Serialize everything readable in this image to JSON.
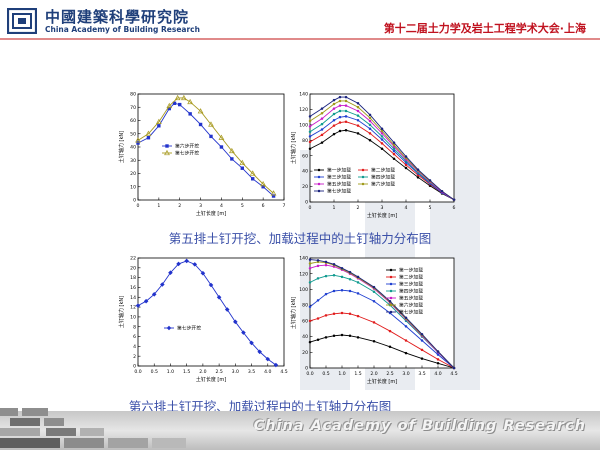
{
  "header": {
    "logo_cn": "中國建築科學研究院",
    "logo_en": "China Academy of Building Research",
    "conference": "第十二届土力学及岩土工程学术大会·上海"
  },
  "captions": {
    "row5": "第五排土钉开挖、加载过程中的土钉轴力分布图",
    "row6": "第六排土钉开挖、加载过程中的土钉轴力分布图"
  },
  "footer": {
    "text": "China Academy of Building Research"
  },
  "colors": {
    "accent": "#c0121f",
    "caption": "#3a4fa8",
    "logo": "#1f3f7a"
  },
  "chart_data": [
    {
      "type": "line",
      "xlabel": "土钉长度 [m]",
      "ylabel": "土钉轴力 [kN]",
      "xlim": [
        0,
        7
      ],
      "ylim": [
        0,
        80
      ],
      "xticks": [
        "0",
        "1",
        "2",
        "3",
        "4",
        "5",
        "6",
        "7"
      ],
      "yticks": [
        "0",
        "10",
        "20",
        "30",
        "40",
        "50",
        "60",
        "70",
        "80"
      ],
      "legend": "center-left",
      "series": [
        {
          "name": "第六步开挖",
          "color": "#2233cc",
          "marker": "square",
          "x": [
            0,
            0.5,
            1.0,
            1.5,
            1.75,
            2.0,
            2.5,
            3.0,
            3.5,
            4.0,
            4.5,
            5.0,
            5.5,
            6.0,
            6.5
          ],
          "y": [
            43,
            47,
            56,
            69,
            73,
            72,
            65,
            57,
            48,
            40,
            31,
            24,
            16,
            10,
            3
          ]
        },
        {
          "name": "第七步开挖",
          "color": "#a89a20",
          "marker": "triangle",
          "x": [
            0,
            0.5,
            1.0,
            1.5,
            1.9,
            2.2,
            2.5,
            3.0,
            3.5,
            4.0,
            4.5,
            5.0,
            5.5,
            6.0,
            6.5
          ],
          "y": [
            45,
            50,
            59,
            71,
            77,
            77,
            74,
            67,
            57,
            47,
            37,
            28,
            20,
            12,
            5
          ]
        }
      ]
    },
    {
      "type": "line",
      "xlabel": "土钉长度 [m]",
      "ylabel": "土钉轴力 [kN]",
      "xlim": [
        0,
        6
      ],
      "ylim": [
        0,
        140
      ],
      "xticks": [
        "0",
        "1",
        "2",
        "3",
        "4",
        "5",
        "6"
      ],
      "yticks": [
        "0",
        "20",
        "40",
        "60",
        "80",
        "100",
        "120",
        "140"
      ],
      "legend": "bottom-left",
      "series": [
        {
          "name": "第一步加载",
          "color": "#000000",
          "x": [
            0,
            0.5,
            1.0,
            1.25,
            1.5,
            2.0,
            2.5,
            3.0,
            3.5,
            4.0,
            4.5,
            5.0,
            5.5,
            6.0
          ],
          "y": [
            69,
            77,
            88,
            92,
            93,
            89,
            80,
            69,
            56,
            44,
            32,
            21,
            11,
            3
          ]
        },
        {
          "name": "第二步加载",
          "color": "#e11b1b",
          "x": [
            0,
            0.5,
            1.0,
            1.25,
            1.5,
            2.0,
            2.5,
            3.0,
            3.5,
            4.0,
            4.5,
            5.0,
            5.5,
            6.0
          ],
          "y": [
            78,
            87,
            99,
            103,
            104,
            99,
            89,
            76,
            62,
            48,
            35,
            23,
            12,
            3
          ]
        },
        {
          "name": "第三步加载",
          "color": "#1f3fd1",
          "x": [
            0,
            0.5,
            1.0,
            1.25,
            1.5,
            2.0,
            2.5,
            3.0,
            3.5,
            4.0,
            4.5,
            5.0,
            5.5,
            6.0
          ],
          "y": [
            85,
            94,
            106,
            110,
            111,
            106,
            95,
            81,
            66,
            51,
            37,
            24,
            12,
            3
          ]
        },
        {
          "name": "第四步加载",
          "color": "#0f9a8f",
          "x": [
            0,
            0.5,
            1.0,
            1.25,
            1.5,
            2.0,
            2.5,
            3.0,
            3.5,
            4.0,
            4.5,
            5.0,
            5.5,
            6.0
          ],
          "y": [
            91,
            101,
            114,
            118,
            118,
            112,
            100,
            85,
            69,
            53,
            38,
            25,
            13,
            3
          ]
        },
        {
          "name": "第五步加载",
          "color": "#c81bc8",
          "x": [
            0,
            0.5,
            1.0,
            1.25,
            1.5,
            2.0,
            2.5,
            3.0,
            3.5,
            4.0,
            4.5,
            5.0,
            5.5,
            6.0
          ],
          "y": [
            98,
            108,
            121,
            125,
            125,
            118,
            105,
            89,
            72,
            55,
            40,
            26,
            13,
            3
          ]
        },
        {
          "name": "第六步加载",
          "color": "#a09a1a",
          "x": [
            0,
            0.5,
            1.0,
            1.25,
            1.5,
            2.0,
            2.5,
            3.0,
            3.5,
            4.0,
            4.5,
            5.0,
            5.5,
            6.0
          ],
          "y": [
            105,
            115,
            127,
            131,
            131,
            123,
            109,
            92,
            74,
            57,
            41,
            27,
            14,
            3
          ]
        },
        {
          "name": "第七步加载",
          "color": "#1a237e",
          "x": [
            0,
            0.5,
            1.0,
            1.25,
            1.5,
            2.0,
            2.5,
            3.0,
            3.5,
            4.0,
            4.5,
            5.0,
            5.5,
            6.0
          ],
          "y": [
            111,
            121,
            132,
            136,
            136,
            128,
            113,
            95,
            77,
            59,
            42,
            28,
            14,
            3
          ]
        }
      ]
    },
    {
      "type": "line",
      "xlabel": "土钉长度 [m]",
      "ylabel": "土钉轴力 [kN]",
      "xlim": [
        0,
        4.5
      ],
      "ylim": [
        0,
        22
      ],
      "xticks": [
        "0.0",
        "0.5",
        "1.0",
        "1.5",
        "2.0",
        "2.5",
        "3.0",
        "3.5",
        "4.0",
        "4.5"
      ],
      "yticks": [
        "0",
        "2",
        "4",
        "6",
        "8",
        "10",
        "12",
        "14",
        "16",
        "18",
        "20",
        "22"
      ],
      "legend": "center",
      "series": [
        {
          "name": "第七步开挖",
          "color": "#2233cc",
          "marker": "diamond",
          "x": [
            0,
            0.25,
            0.5,
            0.75,
            1.0,
            1.25,
            1.5,
            1.75,
            2.0,
            2.25,
            2.5,
            2.75,
            3.0,
            3.25,
            3.5,
            3.75,
            4.0,
            4.25
          ],
          "y": [
            12.3,
            13.2,
            14.6,
            16.6,
            19.0,
            20.8,
            21.4,
            20.7,
            18.9,
            16.5,
            14.0,
            11.5,
            9.0,
            6.8,
            4.7,
            2.9,
            1.4,
            0.2
          ]
        }
      ]
    },
    {
      "type": "line",
      "xlabel": "土钉长度 [m]",
      "ylabel": "土钉轴力 [kN]",
      "xlim": [
        0,
        4.5
      ],
      "ylim": [
        0,
        140
      ],
      "xticks": [
        "0.0",
        "0.5",
        "1.0",
        "1.5",
        "2.0",
        "2.5",
        "3.0",
        "3.5",
        "4.0",
        "4.5"
      ],
      "yticks": [
        "0",
        "20",
        "40",
        "60",
        "80",
        "100",
        "120",
        "140"
      ],
      "legend": "top-right",
      "series": [
        {
          "name": "第一步加载",
          "color": "#000000",
          "x": [
            0,
            0.25,
            0.5,
            0.75,
            1.0,
            1.25,
            1.5,
            2.0,
            2.5,
            3.0,
            3.5,
            4.0,
            4.5
          ],
          "y": [
            33,
            36,
            39,
            41,
            42,
            41,
            39,
            34,
            27,
            19,
            12,
            6,
            0
          ]
        },
        {
          "name": "第二步加载",
          "color": "#e11b1b",
          "x": [
            0,
            0.25,
            0.5,
            0.75,
            1.0,
            1.25,
            1.5,
            2.0,
            2.5,
            3.0,
            3.5,
            4.0,
            4.5
          ],
          "y": [
            60,
            63,
            67,
            69,
            70,
            69,
            66,
            58,
            47,
            35,
            23,
            11,
            0
          ]
        },
        {
          "name": "第三步加载",
          "color": "#1f3fd1",
          "x": [
            0,
            0.25,
            0.5,
            0.75,
            1.0,
            1.25,
            1.5,
            2.0,
            2.5,
            3.0,
            3.5,
            4.0,
            4.5
          ],
          "y": [
            78,
            86,
            94,
            98,
            99,
            98,
            95,
            85,
            70,
            53,
            35,
            17,
            0
          ]
        },
        {
          "name": "第四步加载",
          "color": "#0f9a8f",
          "x": [
            0,
            0.25,
            0.5,
            0.75,
            1.0,
            1.25,
            1.5,
            2.0,
            2.5,
            3.0,
            3.5,
            4.0,
            4.5
          ],
          "y": [
            109,
            114,
            117,
            118,
            116,
            113,
            109,
            97,
            80,
            60,
            40,
            20,
            0
          ]
        },
        {
          "name": "第五步加载",
          "color": "#c81bc8",
          "x": [
            0,
            0.25,
            0.5,
            0.75,
            1.0,
            1.25,
            1.5,
            2.0,
            2.5,
            3.0,
            3.5,
            4.0,
            4.5
          ],
          "y": [
            127,
            130,
            131,
            129,
            125,
            120,
            114,
            101,
            83,
            62,
            41,
            20,
            0
          ]
        },
        {
          "name": "第六步加载",
          "color": "#a09a1a",
          "x": [
            0,
            0.25,
            0.5,
            0.75,
            1.0,
            1.25,
            1.5,
            2.0,
            2.5,
            3.0,
            3.5,
            4.0,
            4.5
          ],
          "y": [
            133,
            135,
            134,
            131,
            126,
            121,
            115,
            102,
            84,
            63,
            42,
            21,
            0
          ]
        },
        {
          "name": "第七步加载",
          "color": "#1a237e",
          "x": [
            0,
            0.25,
            0.5,
            0.75,
            1.0,
            1.25,
            1.5,
            2.0,
            2.5,
            3.0,
            3.5,
            4.0,
            4.5
          ],
          "y": [
            138,
            137,
            135,
            132,
            127,
            122,
            116,
            103,
            85,
            64,
            43,
            21,
            0
          ]
        }
      ]
    }
  ]
}
